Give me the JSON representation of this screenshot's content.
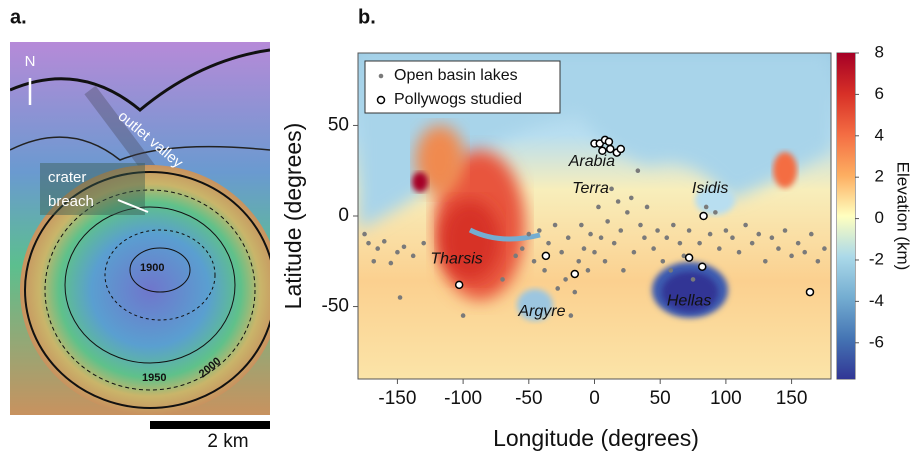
{
  "panel_a": {
    "label": "a.",
    "north": "N",
    "annotations": [
      "outlet valley",
      "crater",
      "breach"
    ],
    "contours": [
      "1900",
      "1950",
      "2000"
    ],
    "scale_bar": "2 km"
  },
  "chart_data": {
    "type": "scatter",
    "panel_label": "b.",
    "xlabel": "Longitude (degrees)",
    "ylabel": "Latitude (degrees)",
    "xlim": [
      -180,
      180
    ],
    "ylim": [
      -90,
      90
    ],
    "xticks": [
      -150,
      -100,
      -50,
      0,
      50,
      100,
      150
    ],
    "yticks": [
      -50,
      0,
      50
    ],
    "legend": "upper left",
    "annotations": [
      "Tharsis",
      "Arabia",
      "Terra",
      "Isidis",
      "Argyre",
      "Hellas"
    ],
    "series": [
      {
        "name": "Open basin lakes",
        "color": "#7a7a7a",
        "marker": "filled",
        "x": [
          -172,
          -165,
          -160,
          -150,
          -145,
          -138,
          -130,
          -175,
          -168,
          -155,
          -148,
          -100,
          -60,
          -55,
          -50,
          -46,
          -42,
          -38,
          -35,
          -30,
          -28,
          -25,
          -22,
          -20,
          -18,
          -15,
          -12,
          -10,
          -8,
          -5,
          -3,
          0,
          3,
          5,
          8,
          10,
          13,
          15,
          18,
          20,
          22,
          25,
          28,
          30,
          33,
          35,
          38,
          40,
          45,
          48,
          52,
          55,
          58,
          60,
          65,
          68,
          72,
          75,
          80,
          85,
          88,
          92,
          95,
          100,
          105,
          110,
          115,
          120,
          125,
          130,
          135,
          140,
          145,
          150,
          155,
          160,
          165,
          170,
          175,
          -70
        ],
        "y": [
          -15,
          -18,
          -14,
          -20,
          -17,
          -22,
          -15,
          -10,
          -25,
          -26,
          -45,
          -55,
          -22,
          -18,
          -10,
          -25,
          -8,
          -30,
          -15,
          -5,
          -40,
          -20,
          -35,
          -12,
          -55,
          -42,
          -25,
          -5,
          -18,
          -30,
          -10,
          -20,
          5,
          -12,
          -25,
          -3,
          15,
          -15,
          8,
          -8,
          -30,
          2,
          10,
          -20,
          25,
          -5,
          -12,
          5,
          -18,
          -8,
          -25,
          -12,
          -30,
          -5,
          -15,
          -22,
          -8,
          -35,
          -15,
          5,
          -10,
          2,
          -18,
          -8,
          -12,
          -20,
          -5,
          -15,
          -10,
          -25,
          -12,
          -18,
          -8,
          -22,
          -15,
          -20,
          -10,
          -25,
          -18,
          -35
        ]
      },
      {
        "name": "Pollywogs studied",
        "color": "#000000",
        "marker": "open",
        "x": [
          -103,
          -37,
          -15,
          0,
          4,
          8,
          11,
          12,
          17,
          20,
          6,
          72,
          82,
          83,
          164
        ],
        "y": [
          -38,
          -22,
          -32,
          40,
          40,
          42,
          41,
          37,
          35,
          37,
          36,
          -23,
          -28,
          0,
          -42
        ]
      }
    ],
    "colorbar": {
      "label": "Elevation (km)",
      "lim": [
        -7.75,
        8
      ],
      "ticks": [
        -6,
        -4,
        -2,
        0,
        2,
        4,
        6,
        8
      ],
      "colors": [
        "#313695",
        "#4575b4",
        "#74add1",
        "#abd9e9",
        "#ffffbf",
        "#fdae61",
        "#f46d43",
        "#d73027",
        "#a50026"
      ]
    }
  }
}
